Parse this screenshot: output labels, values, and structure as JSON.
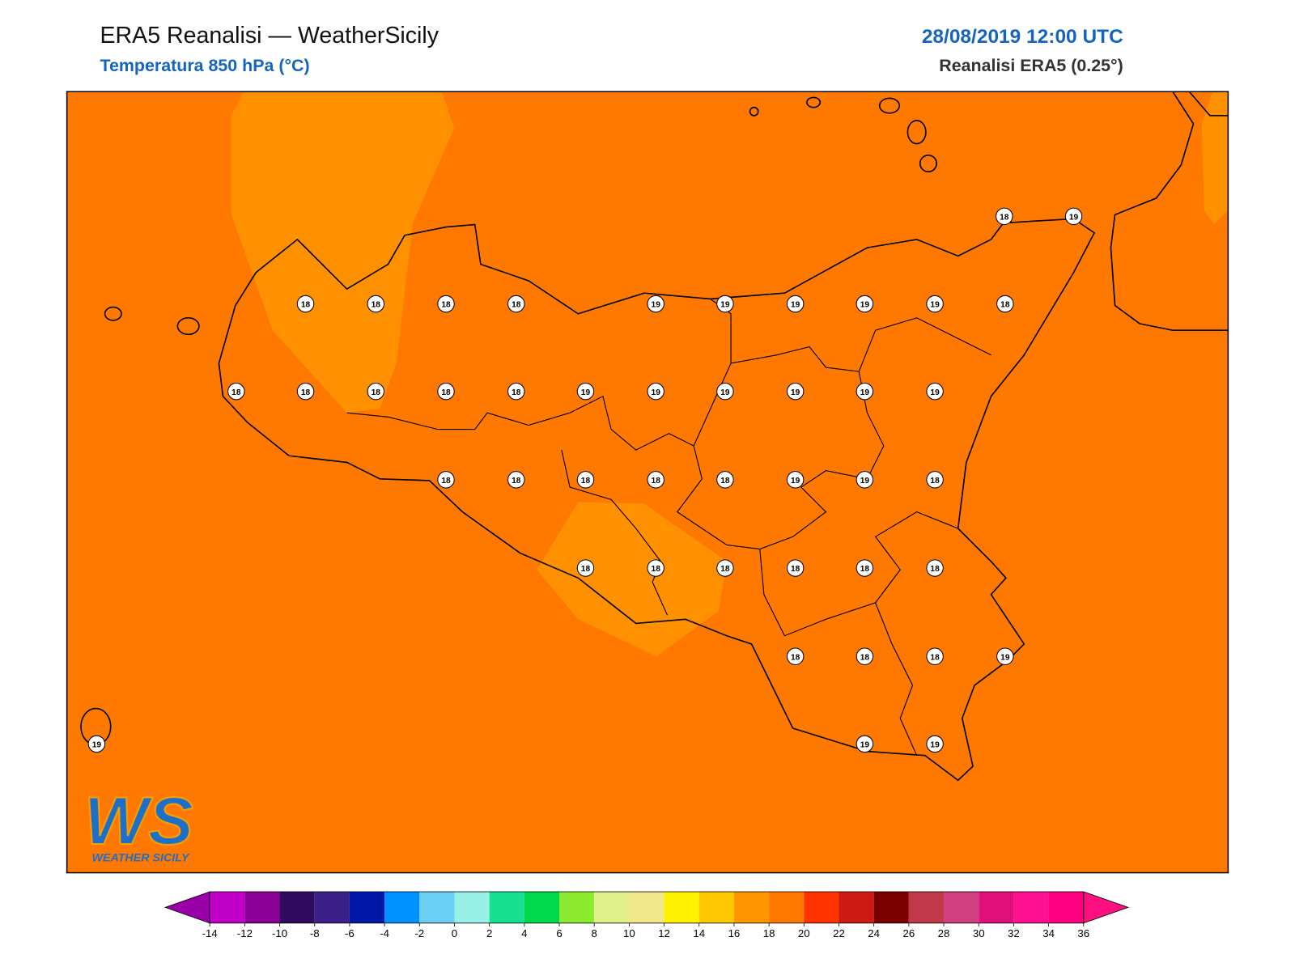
{
  "header": {
    "title": "ERA5 Reanalisi — WeatherSicily",
    "subtitle": "Temperatura 850 hPa (°C)",
    "datetime": "28/08/2019 12:00 UTC",
    "source": "Reanalisi ERA5 (0.25°)"
  },
  "map": {
    "stations": [
      18,
      19,
      18,
      18,
      18,
      18,
      19,
      19,
      19,
      19,
      19,
      18,
      18,
      18,
      18,
      18,
      18,
      19,
      19,
      19,
      19,
      19,
      19,
      18,
      18,
      18,
      18,
      18,
      19,
      19,
      18,
      18,
      18,
      18,
      18,
      18,
      18,
      18,
      18,
      18,
      19,
      19,
      19,
      19
    ]
  },
  "colorbar": {
    "ticks": [
      -14,
      -12,
      -10,
      -8,
      -6,
      -4,
      -2,
      0,
      2,
      4,
      6,
      8,
      10,
      12,
      14,
      16,
      18,
      20,
      22,
      24,
      26,
      28,
      30,
      32,
      34,
      36
    ],
    "colors": [
      "#c000c8",
      "#8a0094",
      "#2e0b5e",
      "#3a2088",
      "#0018a8",
      "#0090ff",
      "#6ccff6",
      "#99f0e6",
      "#18e090",
      "#00d84c",
      "#8ceb30",
      "#dff08a",
      "#f0e68c",
      "#fff200",
      "#ffc800",
      "#ff9600",
      "#ff7800",
      "#ff3300",
      "#cc1a14",
      "#7d0000",
      "#c0394a",
      "#d04080",
      "#e0107a",
      "#ff1090",
      "#ff0080"
    ],
    "under": "#9a00a8",
    "over": "#ff1080"
  },
  "logo": {
    "mark": "WS",
    "name": "WEATHER SICILY"
  }
}
